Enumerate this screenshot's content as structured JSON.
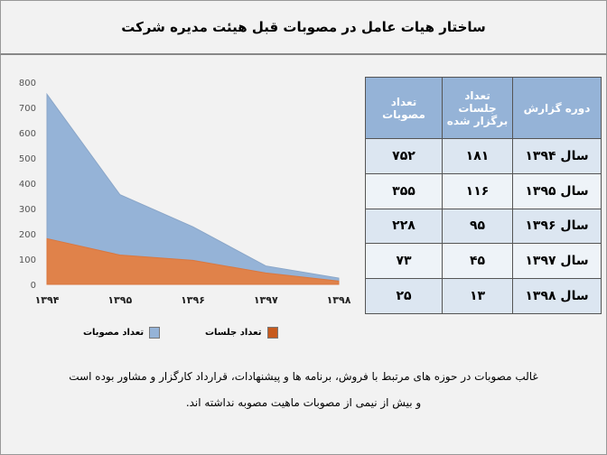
{
  "title": "ساختار هیات عامل در مصوبات قبل هیئت مدیره شرکت",
  "chart_data": {
    "type": "area",
    "categories": [
      "۱۳۹۴",
      "۱۳۹۵",
      "۱۳۹۶",
      "۱۳۹۷",
      "۱۳۹۸"
    ],
    "yticks": [
      "0",
      "100",
      "200",
      "300",
      "400",
      "500",
      "600",
      "700",
      "800"
    ],
    "ylim": [
      0,
      800
    ],
    "grid": false,
    "legend_position": "bottom",
    "series": [
      {
        "name": "تعداد مصوبات",
        "values": [
          752,
          355,
          228,
          73,
          25
        ],
        "color": "#95b3d7"
      },
      {
        "name": "تعداد جلسات",
        "values": [
          181,
          116,
          95,
          45,
          13
        ],
        "color": "#e0824a"
      }
    ]
  },
  "table": {
    "headers": [
      "دوره گزارش",
      "تعداد جلسات برگزار شده",
      "تعداد مصوبات"
    ],
    "rows": [
      [
        "سال ۱۳۹۴",
        "۱۸۱",
        "۷۵۲"
      ],
      [
        "سال ۱۳۹۵",
        "۱۱۶",
        "۳۵۵"
      ],
      [
        "سال ۱۳۹۶",
        "۹۵",
        "۲۲۸"
      ],
      [
        "سال ۱۳۹۷",
        "۴۵",
        "۷۳"
      ],
      [
        "سال ۱۳۹۸",
        "۱۳",
        "۲۵"
      ]
    ]
  },
  "note": {
    "line1": "غالب مصوبات در حوزه های مرتبط با فروش، برنامه ها و پیشنهادات، قرارداد کارگزار و مشاور بوده است",
    "line2": "و بیش از نیمی از مصوبات ماهیت مصوبه نداشته اند."
  }
}
